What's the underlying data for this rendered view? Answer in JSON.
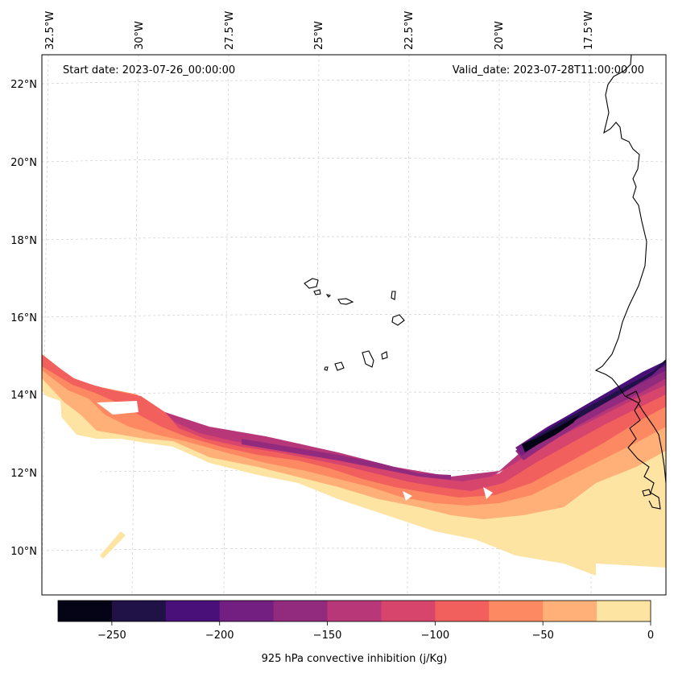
{
  "map": {
    "start_date": "Start date: 2023-07-26_00:00:00",
    "valid_date": "Valid_date: 2023-07-28T11:00:00.00",
    "lon_labels": [
      "32.5°W",
      "30°W",
      "27.5°W",
      "25°W",
      "22.5°W",
      "20°W",
      "17.5°W"
    ],
    "lat_labels": [
      "22°N",
      "20°N",
      "18°N",
      "16°N",
      "14°N",
      "12°N",
      "10°N"
    ]
  },
  "colorbar": {
    "label": "925 hPa convective inhibition (j/Kg)",
    "ticks": [
      "−250",
      "−200",
      "−150",
      "−100",
      "−50",
      "0"
    ],
    "range": [
      -275,
      0
    ],
    "colors": [
      "#050416",
      "#201246",
      "#4a1079",
      "#721f81",
      "#922a7e",
      "#b73779",
      "#d8456c",
      "#f1605d",
      "#fc8961",
      "#feb078",
      "#fde4a3"
    ]
  }
}
